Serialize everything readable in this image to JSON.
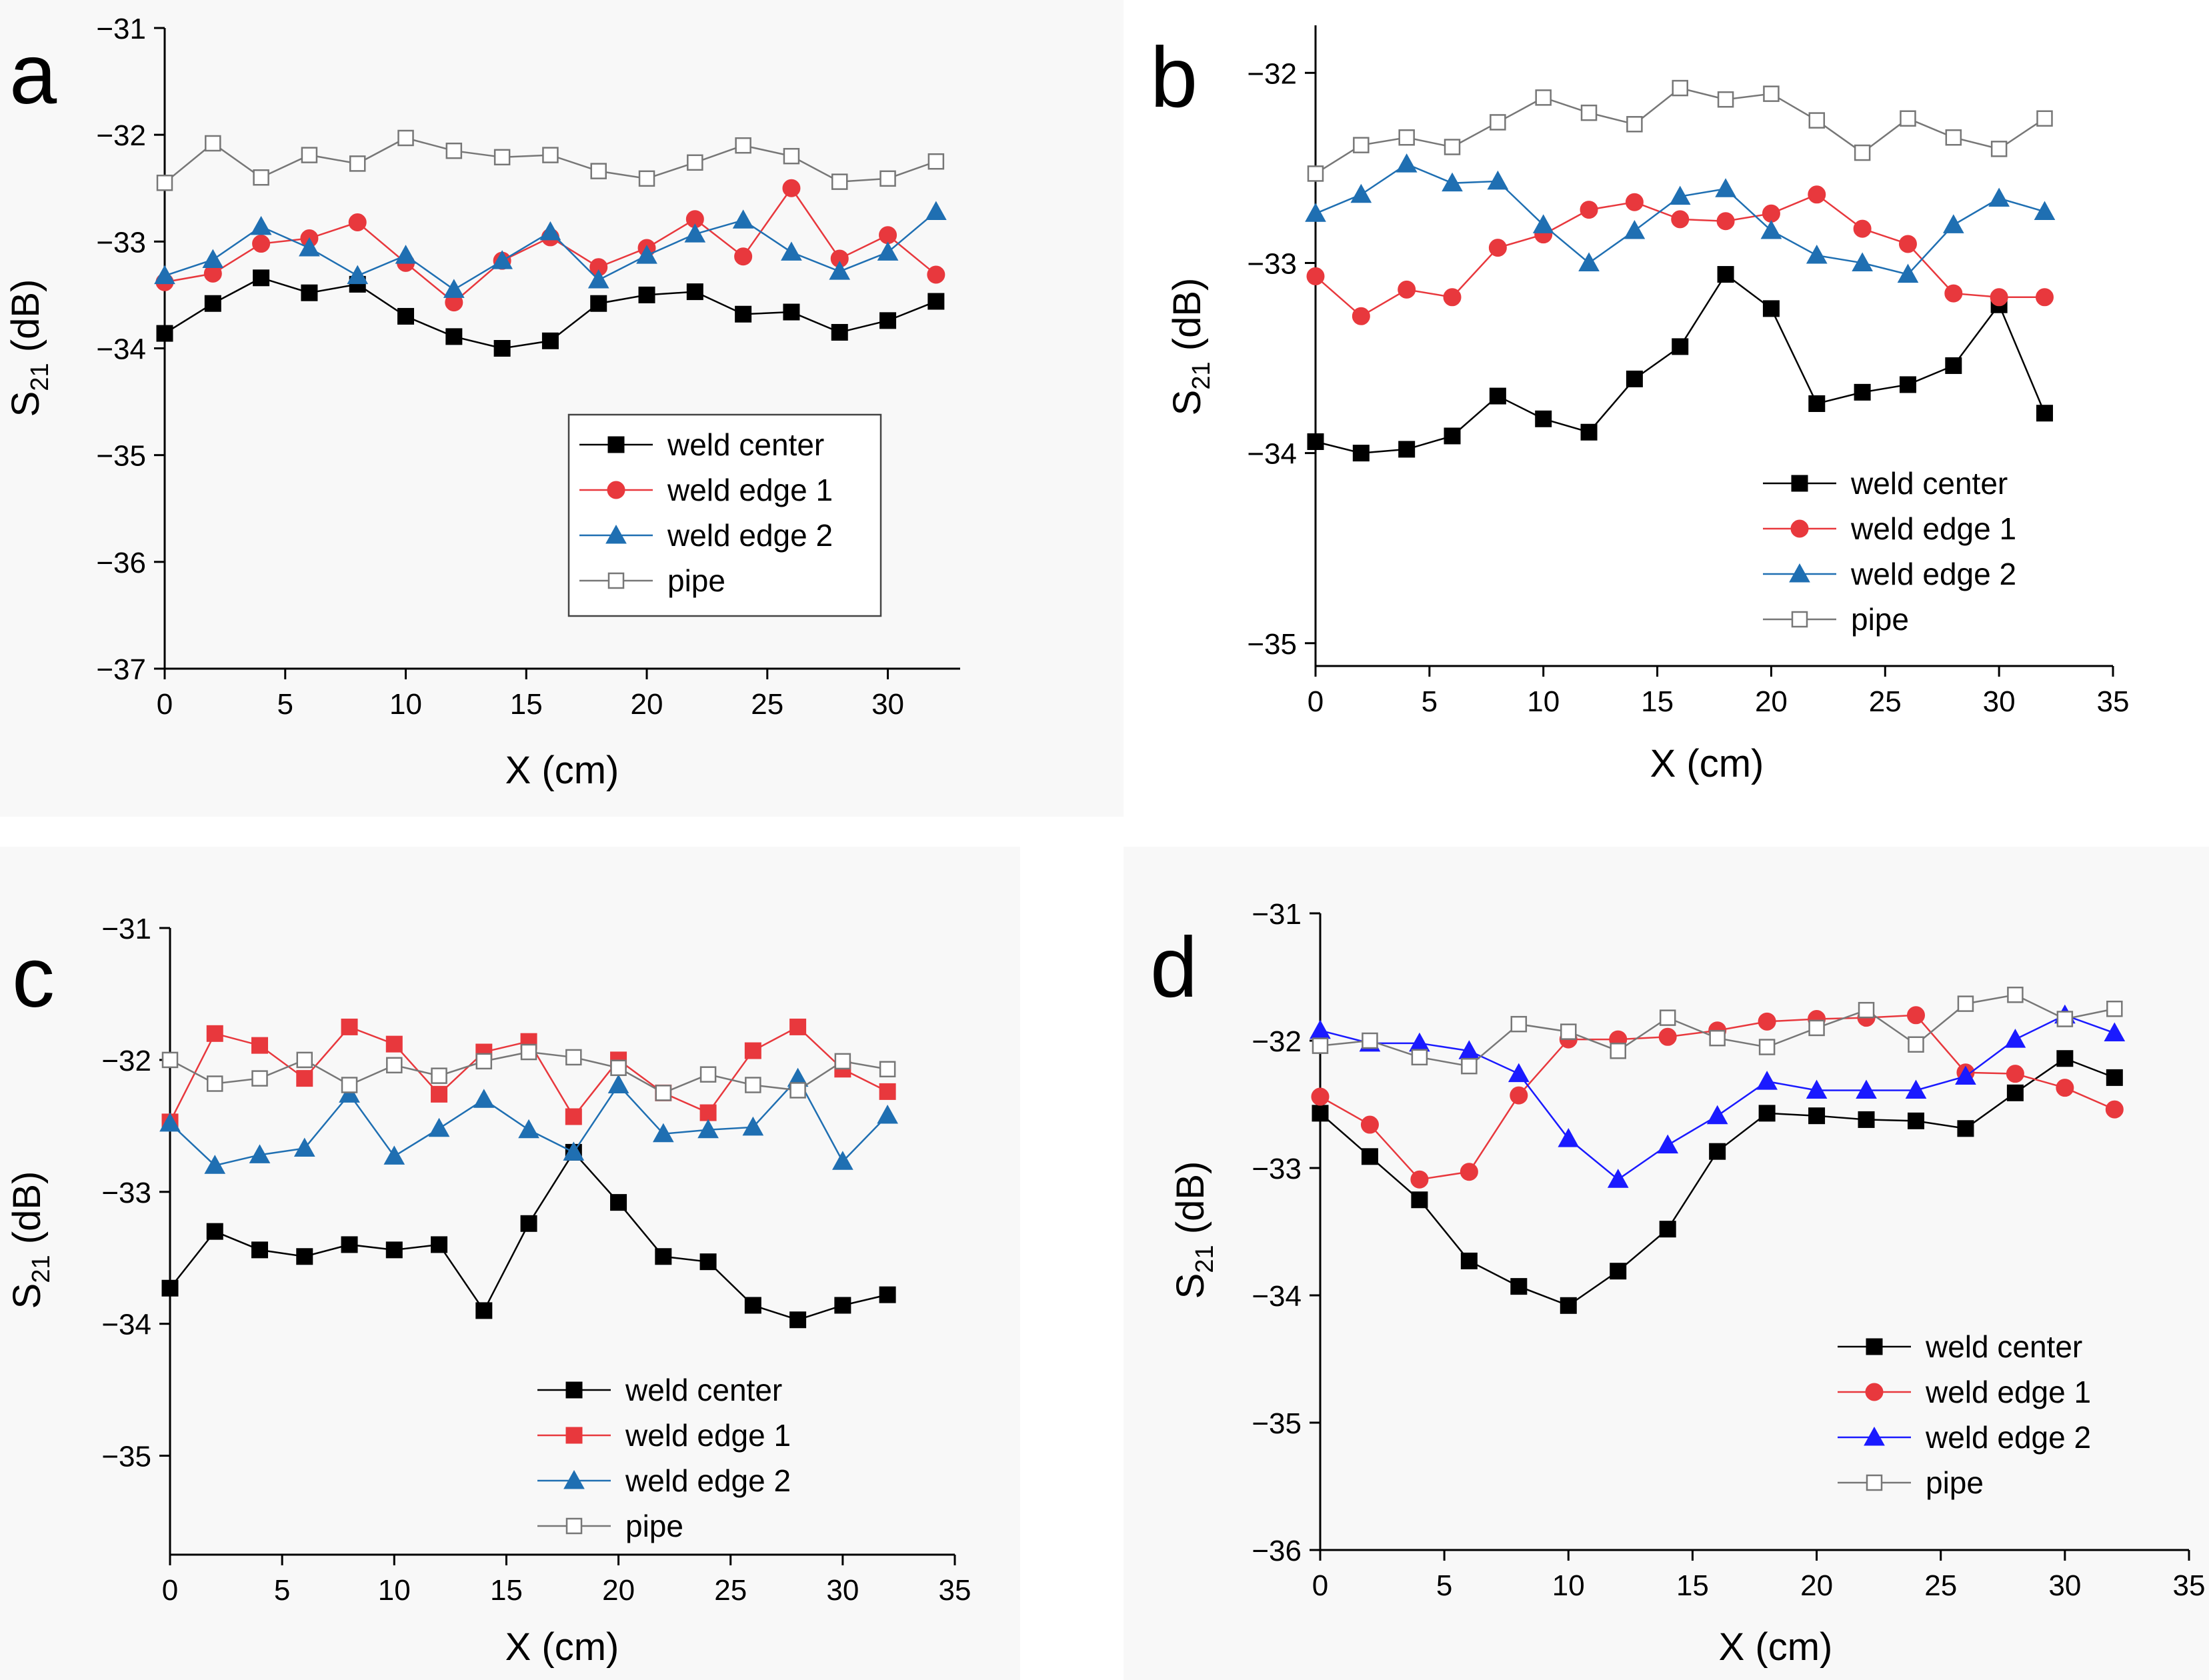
{
  "figure": {
    "description_free": true
  },
  "colors": {
    "weld_center": "#000000",
    "weld_edge_1": "#e8383d",
    "weld_edge_2_blue": "#1f6fb2",
    "weld_edge_2_violet": "#1a1aff",
    "pipe": "#777777",
    "panel_bg": "#f8f8f8"
  },
  "chart_data": [
    {
      "panel_label": "a",
      "type": "line",
      "xlabel": "X (cm)",
      "ylabel_main": "S",
      "ylabel_sub": "21",
      "ylabel_unit": " (dB)",
      "xlim": [
        0,
        33
      ],
      "ylim": [
        -37,
        -31
      ],
      "xticks": [
        0,
        5,
        10,
        15,
        20,
        25,
        30
      ],
      "xtick_labels": [
        "0",
        "5",
        "10",
        "15",
        "20",
        "25",
        "30"
      ],
      "yticks": [
        -37,
        -36,
        -35,
        -34,
        -33,
        -32,
        -31
      ],
      "ytick_labels": [
        "−37",
        "−36",
        "−35",
        "−34",
        "−33",
        "−32",
        "−31"
      ],
      "legend_position": "center-right",
      "x": [
        0,
        2,
        4,
        6,
        8,
        10,
        12,
        14,
        16,
        18,
        20,
        22,
        24,
        26,
        28,
        30,
        32
      ],
      "series": [
        {
          "name": "weld center",
          "marker": "square-filled",
          "color": "#000000",
          "values": [
            -33.86,
            -33.58,
            -33.34,
            -33.48,
            -33.4,
            -33.7,
            -33.89,
            -34.0,
            -33.93,
            -33.58,
            -33.5,
            -33.47,
            -33.68,
            -33.66,
            -33.85,
            -33.74,
            -33.56
          ]
        },
        {
          "name": "weld edge 1",
          "marker": "circle-filled",
          "color": "#e8383d",
          "values": [
            -33.38,
            -33.3,
            -33.02,
            -32.97,
            -32.82,
            -33.2,
            -33.57,
            -33.18,
            -32.96,
            -33.24,
            -33.06,
            -32.79,
            -33.14,
            -32.5,
            -33.16,
            -32.94,
            -33.31
          ]
        },
        {
          "name": "weld edge 2",
          "marker": "triangle-filled",
          "color": "#1f6fb2",
          "values": [
            -33.32,
            -33.17,
            -32.86,
            -33.06,
            -33.32,
            -33.13,
            -33.45,
            -33.18,
            -32.91,
            -33.36,
            -33.13,
            -32.93,
            -32.8,
            -33.1,
            -33.28,
            -33.1,
            -32.72
          ]
        },
        {
          "name": "pipe",
          "marker": "square-open",
          "color": "#777777",
          "values": [
            -32.45,
            -32.08,
            -32.4,
            -32.19,
            -32.27,
            -32.03,
            -32.15,
            -32.21,
            -32.19,
            -32.34,
            -32.41,
            -32.26,
            -32.1,
            -32.2,
            -32.44,
            -32.41,
            -32.25
          ]
        }
      ]
    },
    {
      "panel_label": "b",
      "type": "line",
      "xlabel": "X (cm)",
      "ylabel_main": "S",
      "ylabel_sub": "21",
      "ylabel_unit": " (dB)",
      "xlim": [
        0,
        35
      ],
      "ylim": [
        -35.12,
        -31.75
      ],
      "xticks": [
        0,
        5,
        10,
        15,
        20,
        25,
        30,
        35
      ],
      "xtick_labels": [
        "0",
        "5",
        "10",
        "15",
        "20",
        "25",
        "30",
        "35"
      ],
      "yticks": [
        -35,
        -34,
        -33,
        -32
      ],
      "ytick_labels": [
        "−35",
        "−34",
        "−33",
        "−32"
      ],
      "legend_position": "bottom-right",
      "x": [
        0,
        2,
        4,
        6,
        8,
        10,
        12,
        14,
        16,
        18,
        20,
        22,
        24,
        26,
        28,
        30,
        32
      ],
      "series": [
        {
          "name": "weld center",
          "marker": "square-filled",
          "color": "#000000",
          "values": [
            -33.94,
            -34.0,
            -33.98,
            -33.91,
            -33.7,
            -33.82,
            -33.89,
            -33.61,
            -33.44,
            -33.06,
            -33.24,
            -33.74,
            -33.68,
            -33.64,
            -33.54,
            -33.22,
            -33.79
          ]
        },
        {
          "name": "weld edge 1",
          "marker": "circle-filled",
          "color": "#e8383d",
          "values": [
            -33.07,
            -33.28,
            -33.14,
            -33.18,
            -32.92,
            -32.85,
            -32.72,
            -32.68,
            -32.77,
            -32.78,
            -32.74,
            -32.64,
            -32.82,
            -32.9,
            -33.16,
            -33.18,
            -33.18
          ]
        },
        {
          "name": "weld edge 2",
          "marker": "triangle-filled",
          "color": "#1f6fb2",
          "values": [
            -32.74,
            -32.64,
            -32.48,
            -32.58,
            -32.57,
            -32.8,
            -33.0,
            -32.83,
            -32.65,
            -32.61,
            -32.83,
            -32.96,
            -33.0,
            -33.06,
            -32.8,
            -32.66,
            -32.73
          ]
        },
        {
          "name": "pipe",
          "marker": "square-open",
          "color": "#777777",
          "values": [
            -32.53,
            -32.38,
            -32.34,
            -32.39,
            -32.26,
            -32.13,
            -32.21,
            -32.27,
            -32.08,
            -32.14,
            -32.11,
            -32.25,
            -32.42,
            -32.24,
            -32.34,
            -32.4,
            -32.24
          ]
        }
      ]
    },
    {
      "panel_label": "c",
      "type": "line",
      "xlabel": "X (cm)",
      "ylabel_main": "S",
      "ylabel_sub": "21",
      "ylabel_unit": " (dB)",
      "xlim": [
        0,
        35
      ],
      "ylim": [
        -35.75,
        -31
      ],
      "xticks": [
        0,
        5,
        10,
        15,
        20,
        25,
        30,
        35
      ],
      "xtick_labels": [
        "0",
        "5",
        "10",
        "15",
        "20",
        "25",
        "30",
        "35"
      ],
      "yticks": [
        -35,
        -34,
        -33,
        -32,
        -31
      ],
      "ytick_labels": [
        "−35",
        "−34",
        "−33",
        "−32",
        "−31"
      ],
      "legend_position": "bottom-center",
      "x": [
        0,
        2,
        4,
        6,
        8,
        10,
        12,
        14,
        16,
        18,
        20,
        22,
        24,
        26,
        28,
        30,
        32
      ],
      "series": [
        {
          "name": "weld center",
          "marker": "square-filled",
          "color": "#000000",
          "values": [
            -33.73,
            -33.3,
            -33.44,
            -33.49,
            -33.4,
            -33.44,
            -33.4,
            -33.9,
            -33.24,
            -32.7,
            -33.08,
            -33.49,
            -33.53,
            -33.86,
            -33.97,
            -33.86,
            -33.78
          ]
        },
        {
          "name": "weld edge 1",
          "marker": "square-filled",
          "color": "#e8383d",
          "values": [
            -32.47,
            -31.8,
            -31.89,
            -32.14,
            -31.75,
            -31.88,
            -32.26,
            -31.94,
            -31.86,
            -32.43,
            -32.0,
            -32.25,
            -32.4,
            -31.93,
            -31.75,
            -32.07,
            -32.24
          ]
        },
        {
          "name": "weld edge 2",
          "marker": "triangle-filled",
          "color": "#1f6fb2",
          "values": [
            -32.48,
            -32.8,
            -32.72,
            -32.67,
            -32.26,
            -32.73,
            -32.52,
            -32.3,
            -32.53,
            -32.7,
            -32.19,
            -32.56,
            -32.53,
            -32.51,
            -32.14,
            -32.77,
            -32.42
          ]
        },
        {
          "name": "pipe",
          "marker": "square-open",
          "color": "#777777",
          "values": [
            -32.0,
            -32.18,
            -32.14,
            -32.0,
            -32.19,
            -32.04,
            -32.12,
            -32.01,
            -31.94,
            -31.98,
            -32.06,
            -32.25,
            -32.11,
            -32.19,
            -32.23,
            -32.01,
            -32.07
          ]
        }
      ]
    },
    {
      "panel_label": "d",
      "type": "line",
      "xlabel": "X (cm)",
      "ylabel_main": "S",
      "ylabel_sub": "21",
      "ylabel_unit": " (dB)",
      "xlim": [
        0,
        35
      ],
      "ylim": [
        -36,
        -31
      ],
      "xticks": [
        0,
        5,
        10,
        15,
        20,
        25,
        30,
        35
      ],
      "xtick_labels": [
        "0",
        "5",
        "10",
        "15",
        "20",
        "25",
        "30",
        "35"
      ],
      "yticks": [
        -36,
        -35,
        -34,
        -33,
        -32,
        -31
      ],
      "ytick_labels": [
        "−36",
        "−35",
        "−34",
        "−33",
        "−32",
        "−31"
      ],
      "legend_position": "bottom-right",
      "x": [
        0,
        2,
        4,
        6,
        8,
        10,
        12,
        14,
        16,
        18,
        20,
        22,
        24,
        26,
        28,
        30,
        32
      ],
      "series": [
        {
          "name": "weld center",
          "marker": "square-filled",
          "color": "#000000",
          "values": [
            -32.57,
            -32.91,
            -33.25,
            -33.73,
            -33.93,
            -34.08,
            -33.81,
            -33.48,
            -32.87,
            -32.57,
            -32.59,
            -32.62,
            -32.63,
            -32.69,
            -32.41,
            -32.14,
            -32.29
          ]
        },
        {
          "name": "weld edge 1",
          "marker": "circle-filled",
          "color": "#e8383d",
          "values": [
            -32.44,
            -32.66,
            -33.09,
            -33.03,
            -32.43,
            -31.99,
            -31.99,
            -31.97,
            -31.92,
            -31.85,
            -31.83,
            -31.82,
            -31.8,
            -32.25,
            -32.26,
            -32.37,
            -32.54
          ]
        },
        {
          "name": "weld edge 2",
          "marker": "triangle-filled",
          "color": "#1a1aff",
          "values": [
            -31.92,
            -32.02,
            -32.02,
            -32.08,
            -32.26,
            -32.77,
            -33.09,
            -32.82,
            -32.59,
            -32.32,
            -32.39,
            -32.39,
            -32.39,
            -32.28,
            -31.99,
            -31.8,
            -31.94
          ]
        },
        {
          "name": "pipe",
          "marker": "square-open",
          "color": "#777777",
          "values": [
            -32.04,
            -32.0,
            -32.13,
            -32.2,
            -31.87,
            -31.93,
            -32.08,
            -31.82,
            -31.98,
            -32.05,
            -31.9,
            -31.76,
            -32.03,
            -31.71,
            -31.64,
            -31.83,
            -31.75
          ]
        }
      ]
    }
  ]
}
